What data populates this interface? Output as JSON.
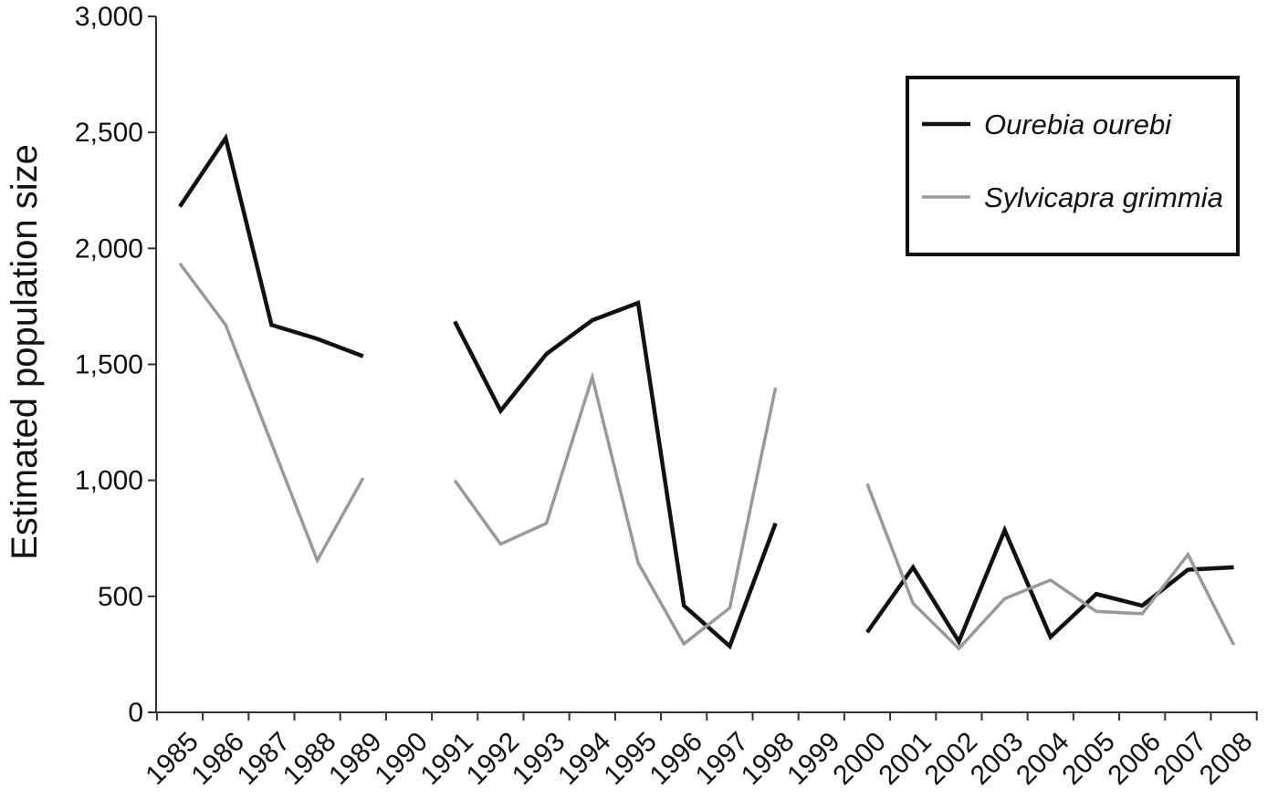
{
  "chart_data": {
    "type": "line",
    "title": "",
    "xlabel": "",
    "ylabel": "Estimated population size",
    "ylim": [
      0,
      3000
    ],
    "yticks": [
      "0",
      "500",
      "1,000",
      "1,500",
      "2,000",
      "2,500",
      "3,000"
    ],
    "ytick_values": [
      0,
      500,
      1000,
      1500,
      2000,
      2500,
      3000
    ],
    "categories": [
      "1985",
      "1986",
      "1987",
      "1988",
      "1989",
      "1990",
      "1991",
      "1992",
      "1993",
      "1994",
      "1995",
      "1996",
      "1997",
      "1998",
      "1999",
      "2000",
      "2001",
      "2002",
      "2003",
      "2004",
      "2005",
      "2006",
      "2007",
      "2008"
    ],
    "grid": false,
    "legend_position": "top-right",
    "series": [
      {
        "name": "Ourebia ourebi",
        "color": "#111111",
        "values": [
          2180,
          2475,
          1670,
          1610,
          1535,
          null,
          1685,
          1300,
          1545,
          1690,
          1765,
          460,
          285,
          815,
          null,
          345,
          625,
          305,
          785,
          325,
          510,
          460,
          615,
          625
        ]
      },
      {
        "name": "Sylvicapra grimmia",
        "color": "#999999",
        "values": [
          1935,
          1670,
          1160,
          655,
          1010,
          null,
          1000,
          725,
          815,
          1445,
          645,
          295,
          450,
          1400,
          null,
          985,
          470,
          275,
          490,
          570,
          435,
          425,
          680,
          290
        ]
      }
    ]
  }
}
